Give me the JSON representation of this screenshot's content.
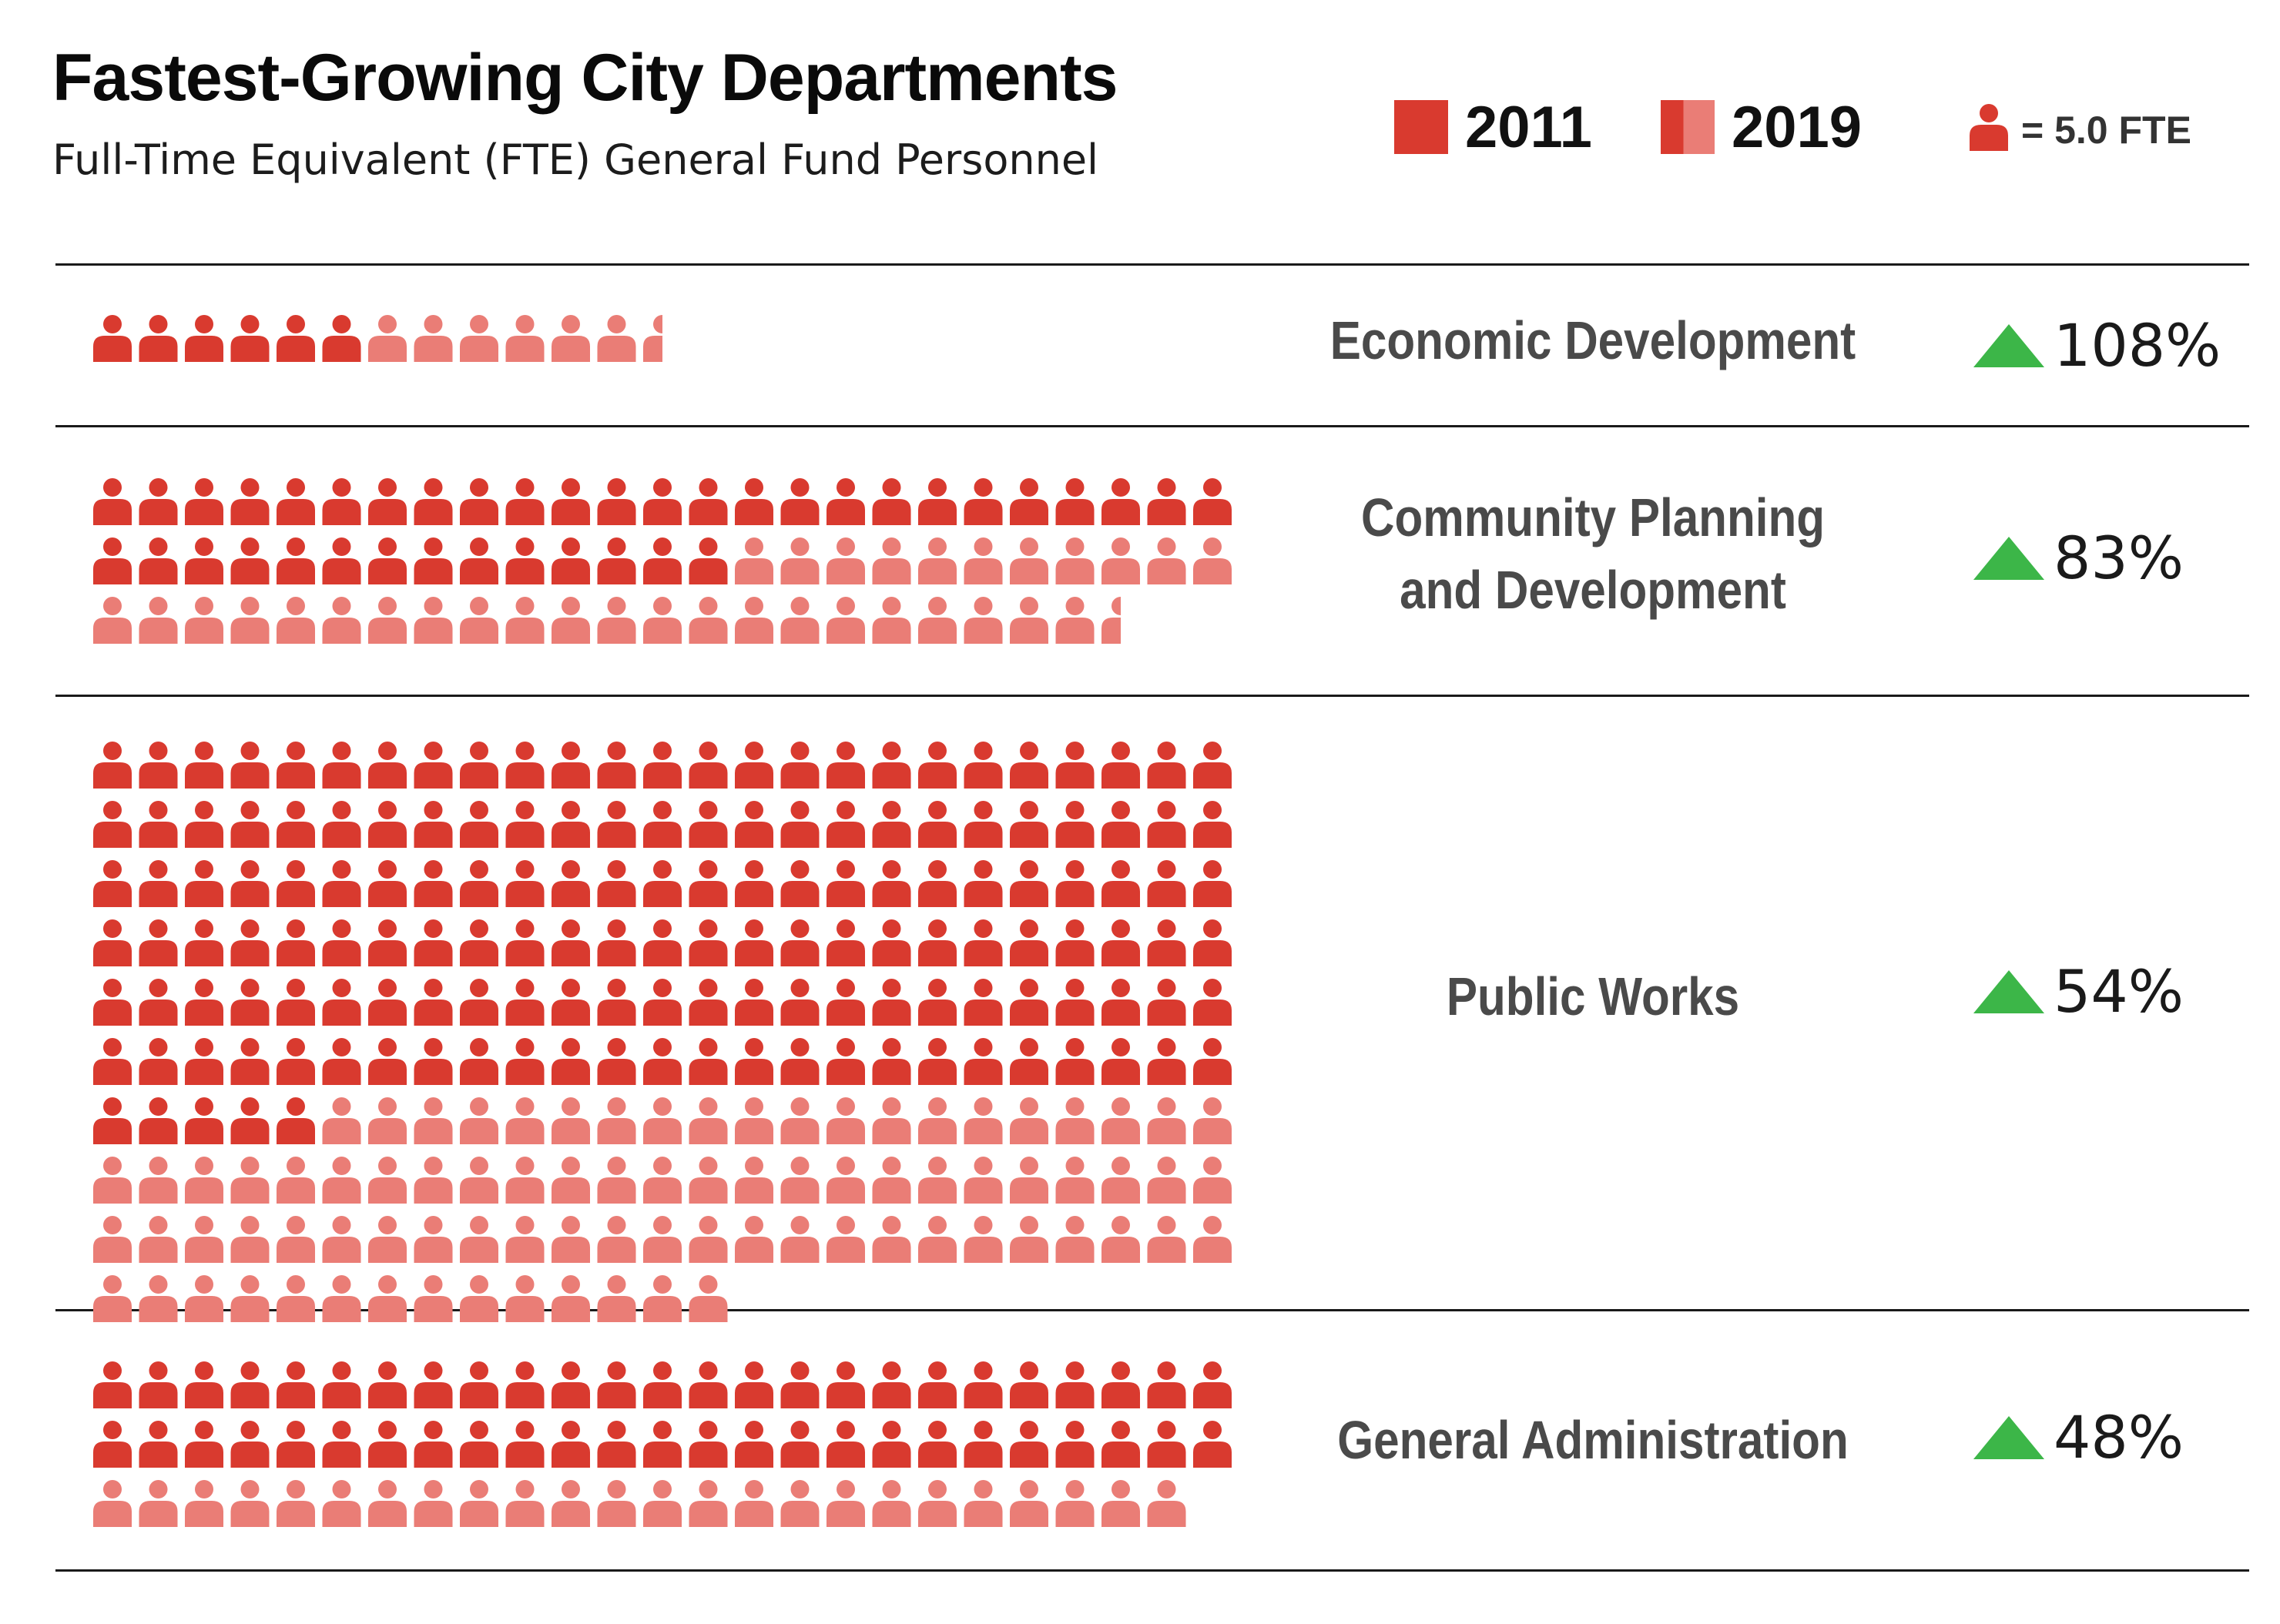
{
  "header": {
    "title": "Fastest-Growing City Departments",
    "subtitle": "Full-Time Equivalent (FTE) General Fund Personnel"
  },
  "legend": {
    "label_2011": "2011",
    "label_2019": "2019",
    "unit_label": "= 5.0 FTE",
    "unit_fte": 5.0
  },
  "colors": {
    "fte_2011": "#d93a2f",
    "fte_2019_added": "#ea7d76",
    "increase_arrow": "#3cb648",
    "label_text": "#4a4a4a"
  },
  "icons": {
    "person": "person-icon",
    "increase": "triangle-up-icon"
  },
  "chart_data": {
    "type": "pictogram",
    "unit": "FTE",
    "icon_value": 5.0,
    "icons_per_row": 25,
    "series": [
      {
        "name": "2011",
        "color": "#d93a2f"
      },
      {
        "name": "2019",
        "color": "#ea7d76"
      }
    ],
    "departments": [
      {
        "name": "Economic Development",
        "label_lines": [
          "Economic Development"
        ],
        "fte_2011": 30,
        "fte_2019": 62.5,
        "change": "108%"
      },
      {
        "name": "Community Planning and Development",
        "label_lines": [
          "Community Planning",
          "and Development"
        ],
        "fte_2011": 197.5,
        "fte_2019": 362.5,
        "change": "83%"
      },
      {
        "name": "Public Works",
        "label_lines": [
          "Public Works"
        ],
        "fte_2011": 777.5,
        "fte_2019": 1195,
        "change": "54%"
      },
      {
        "name": "General Administration",
        "label_lines": [
          "General Administration"
        ],
        "fte_2011": 250,
        "fte_2019": 370,
        "change": "48%"
      }
    ]
  }
}
